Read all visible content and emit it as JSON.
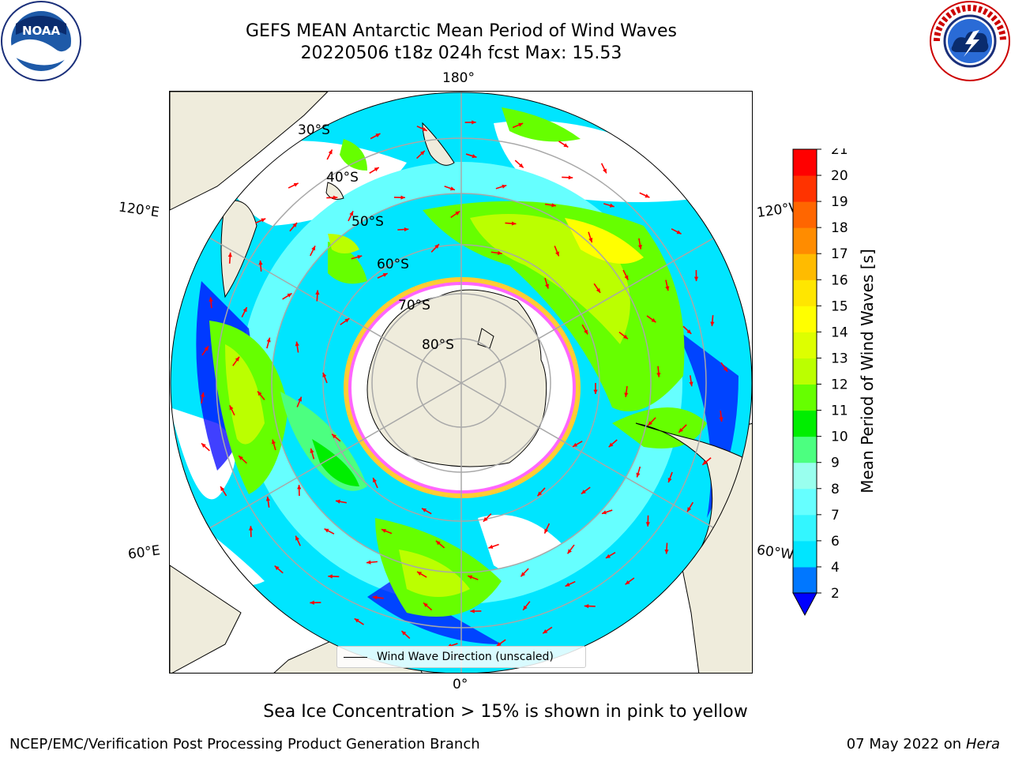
{
  "header": {
    "title_line1": "GEFS MEAN Antarctic Mean Period of Wind Waves",
    "title_line2": "20220506 t18z 024h fcst   Max: 15.53"
  },
  "logos": {
    "left": "noaa-logo",
    "right": "nws-logo"
  },
  "map": {
    "projection": "south-polar-stereographic",
    "longitude_labels": {
      "top": "180°",
      "bottom": "0°",
      "upper_left": "120°E",
      "upper_right": "120°W",
      "lower_left": "60°E",
      "lower_right": "60°W"
    },
    "latitude_labels": [
      "30°S",
      "40°S",
      "50°S",
      "60°S",
      "70°S",
      "80°S"
    ],
    "vector_color": "#ff0000",
    "land_color": "#efecdc",
    "sea_ice_colors": [
      "#ff66ff",
      "#ffcc33"
    ]
  },
  "colorbar": {
    "label": "Mean Period of Wind Waves [s]",
    "ticks": [
      "2",
      "4",
      "6",
      "7",
      "8",
      "9",
      "10",
      "11",
      "12",
      "13",
      "14",
      "15",
      "16",
      "17",
      "18",
      "19",
      "20",
      "21"
    ],
    "colors": [
      "#0000ff",
      "#0077ff",
      "#00e5ff",
      "#33f6ff",
      "#66ffff",
      "#99ffee",
      "#4cff80",
      "#00ee00",
      "#66ff00",
      "#bbff00",
      "#ddff00",
      "#ffff00",
      "#ffe600",
      "#ffbb00",
      "#ff8c00",
      "#ff6600",
      "#ff3300",
      "#ff0000"
    ],
    "extend": "min"
  },
  "legend": {
    "entry": "Wind Wave Direction (unscaled)"
  },
  "footer": {
    "sea_ice_note": "Sea Ice Concentration > 15% is shown in pink to yellow",
    "credit": "NCEP/EMC/Verification Post Processing Product Generation Branch",
    "date": "07 May 2022 on",
    "host": "Hera"
  }
}
